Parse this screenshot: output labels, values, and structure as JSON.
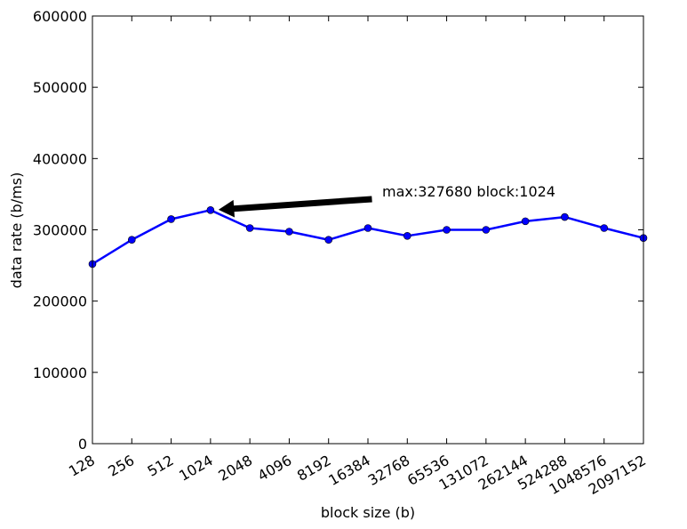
{
  "chart_data": {
    "type": "line",
    "xscale": "log2",
    "x": [
      128,
      256,
      512,
      1024,
      2048,
      4096,
      8192,
      16384,
      32768,
      65536,
      131072,
      262144,
      524288,
      1048576,
      2097152
    ],
    "xtick_labels": [
      "128",
      "256",
      "512",
      "1024",
      "2048",
      "4096",
      "8192",
      "16384",
      "32768",
      "65536",
      "131072",
      "262144",
      "524288",
      "1048576",
      "2097152"
    ],
    "series": [
      {
        "values": [
          252000,
          286000,
          315000,
          327680,
          302500,
          297500,
          286000,
          302500,
          291500,
          300000,
          300000,
          312000,
          318000,
          302500,
          288500
        ],
        "color": "#0000ff",
        "marker": "circle"
      }
    ],
    "ylim": [
      0,
      600000
    ],
    "yticks": [
      0,
      100000,
      200000,
      300000,
      400000,
      500000,
      600000
    ],
    "ytick_labels": [
      "0",
      "100000",
      "200000",
      "300000",
      "400000",
      "500000",
      "600000"
    ],
    "xlabel": "block size (b)",
    "ylabel": "data rate (b/ms)",
    "title": "",
    "grid": false,
    "annotation": {
      "text": "max:327680 block:1024",
      "target_x": 1024,
      "target_y": 327680,
      "arrow_color": "#000000"
    }
  }
}
